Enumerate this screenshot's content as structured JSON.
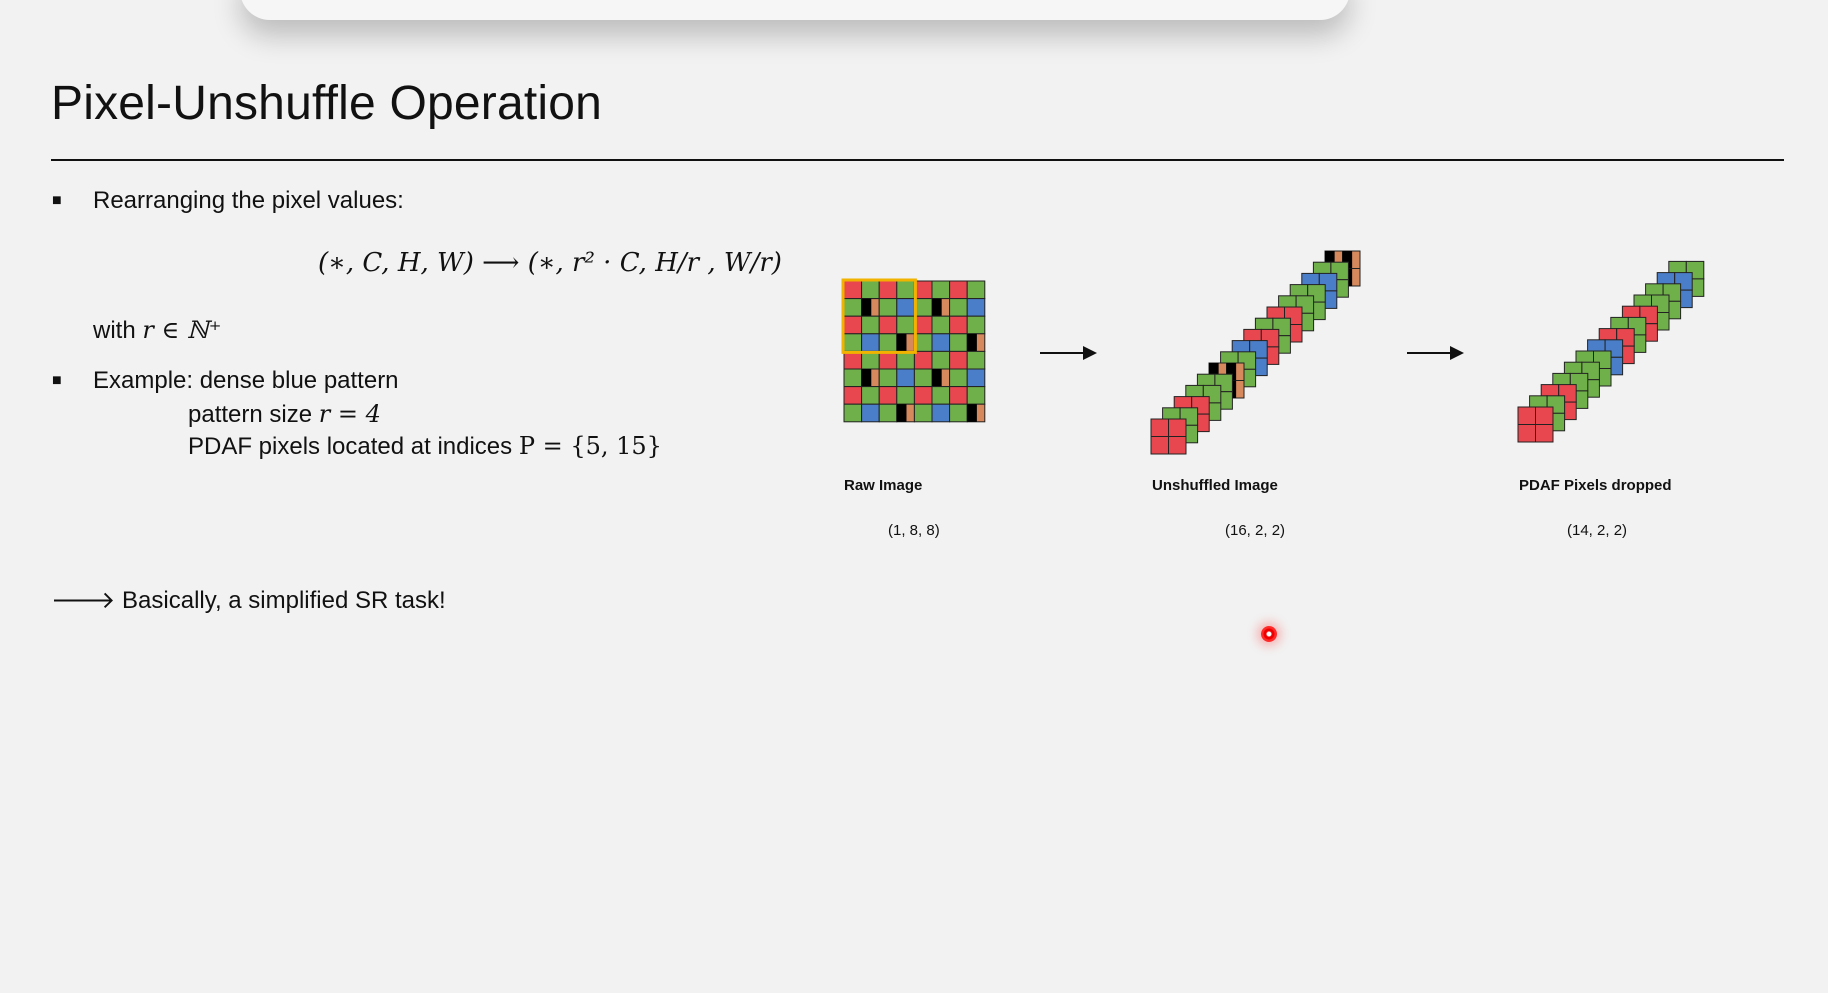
{
  "slide": {
    "title": "Pixel-Unshuffle Operation",
    "bullet1": "Rearranging the pixel values:",
    "formula": "(∗, C, H, W) ⟶ (∗, r² · C, H/r , W/r)",
    "with_text": "with",
    "with_math": "r ∈ ℕ⁺",
    "bullet2": "Example: dense blue pattern",
    "pattern_size_text": "pattern size",
    "pattern_size_math": "r = 4",
    "pdaf_text": "PDAF pixels located at indices",
    "pdaf_math": "P = {5, 15}",
    "conclusion": "🡒 Basically, a simplified SR task!"
  },
  "diagram": {
    "raw": {
      "caption": "Raw Image",
      "dims": "(1, 8, 8)"
    },
    "unshuffled": {
      "caption": "Unshuffled Image",
      "dims": "(16, 2, 2)"
    },
    "dropped": {
      "caption": "PDAF Pixels dropped",
      "dims": "(14, 2, 2)"
    }
  },
  "colors": {
    "red": "#e8474f",
    "green": "#70b04a",
    "blue": "#4a7ec8",
    "pdaf_black": "#000000",
    "pdaf_tan": "#d6895c",
    "highlight": "#f2b200",
    "background": "#f2f2f2"
  }
}
